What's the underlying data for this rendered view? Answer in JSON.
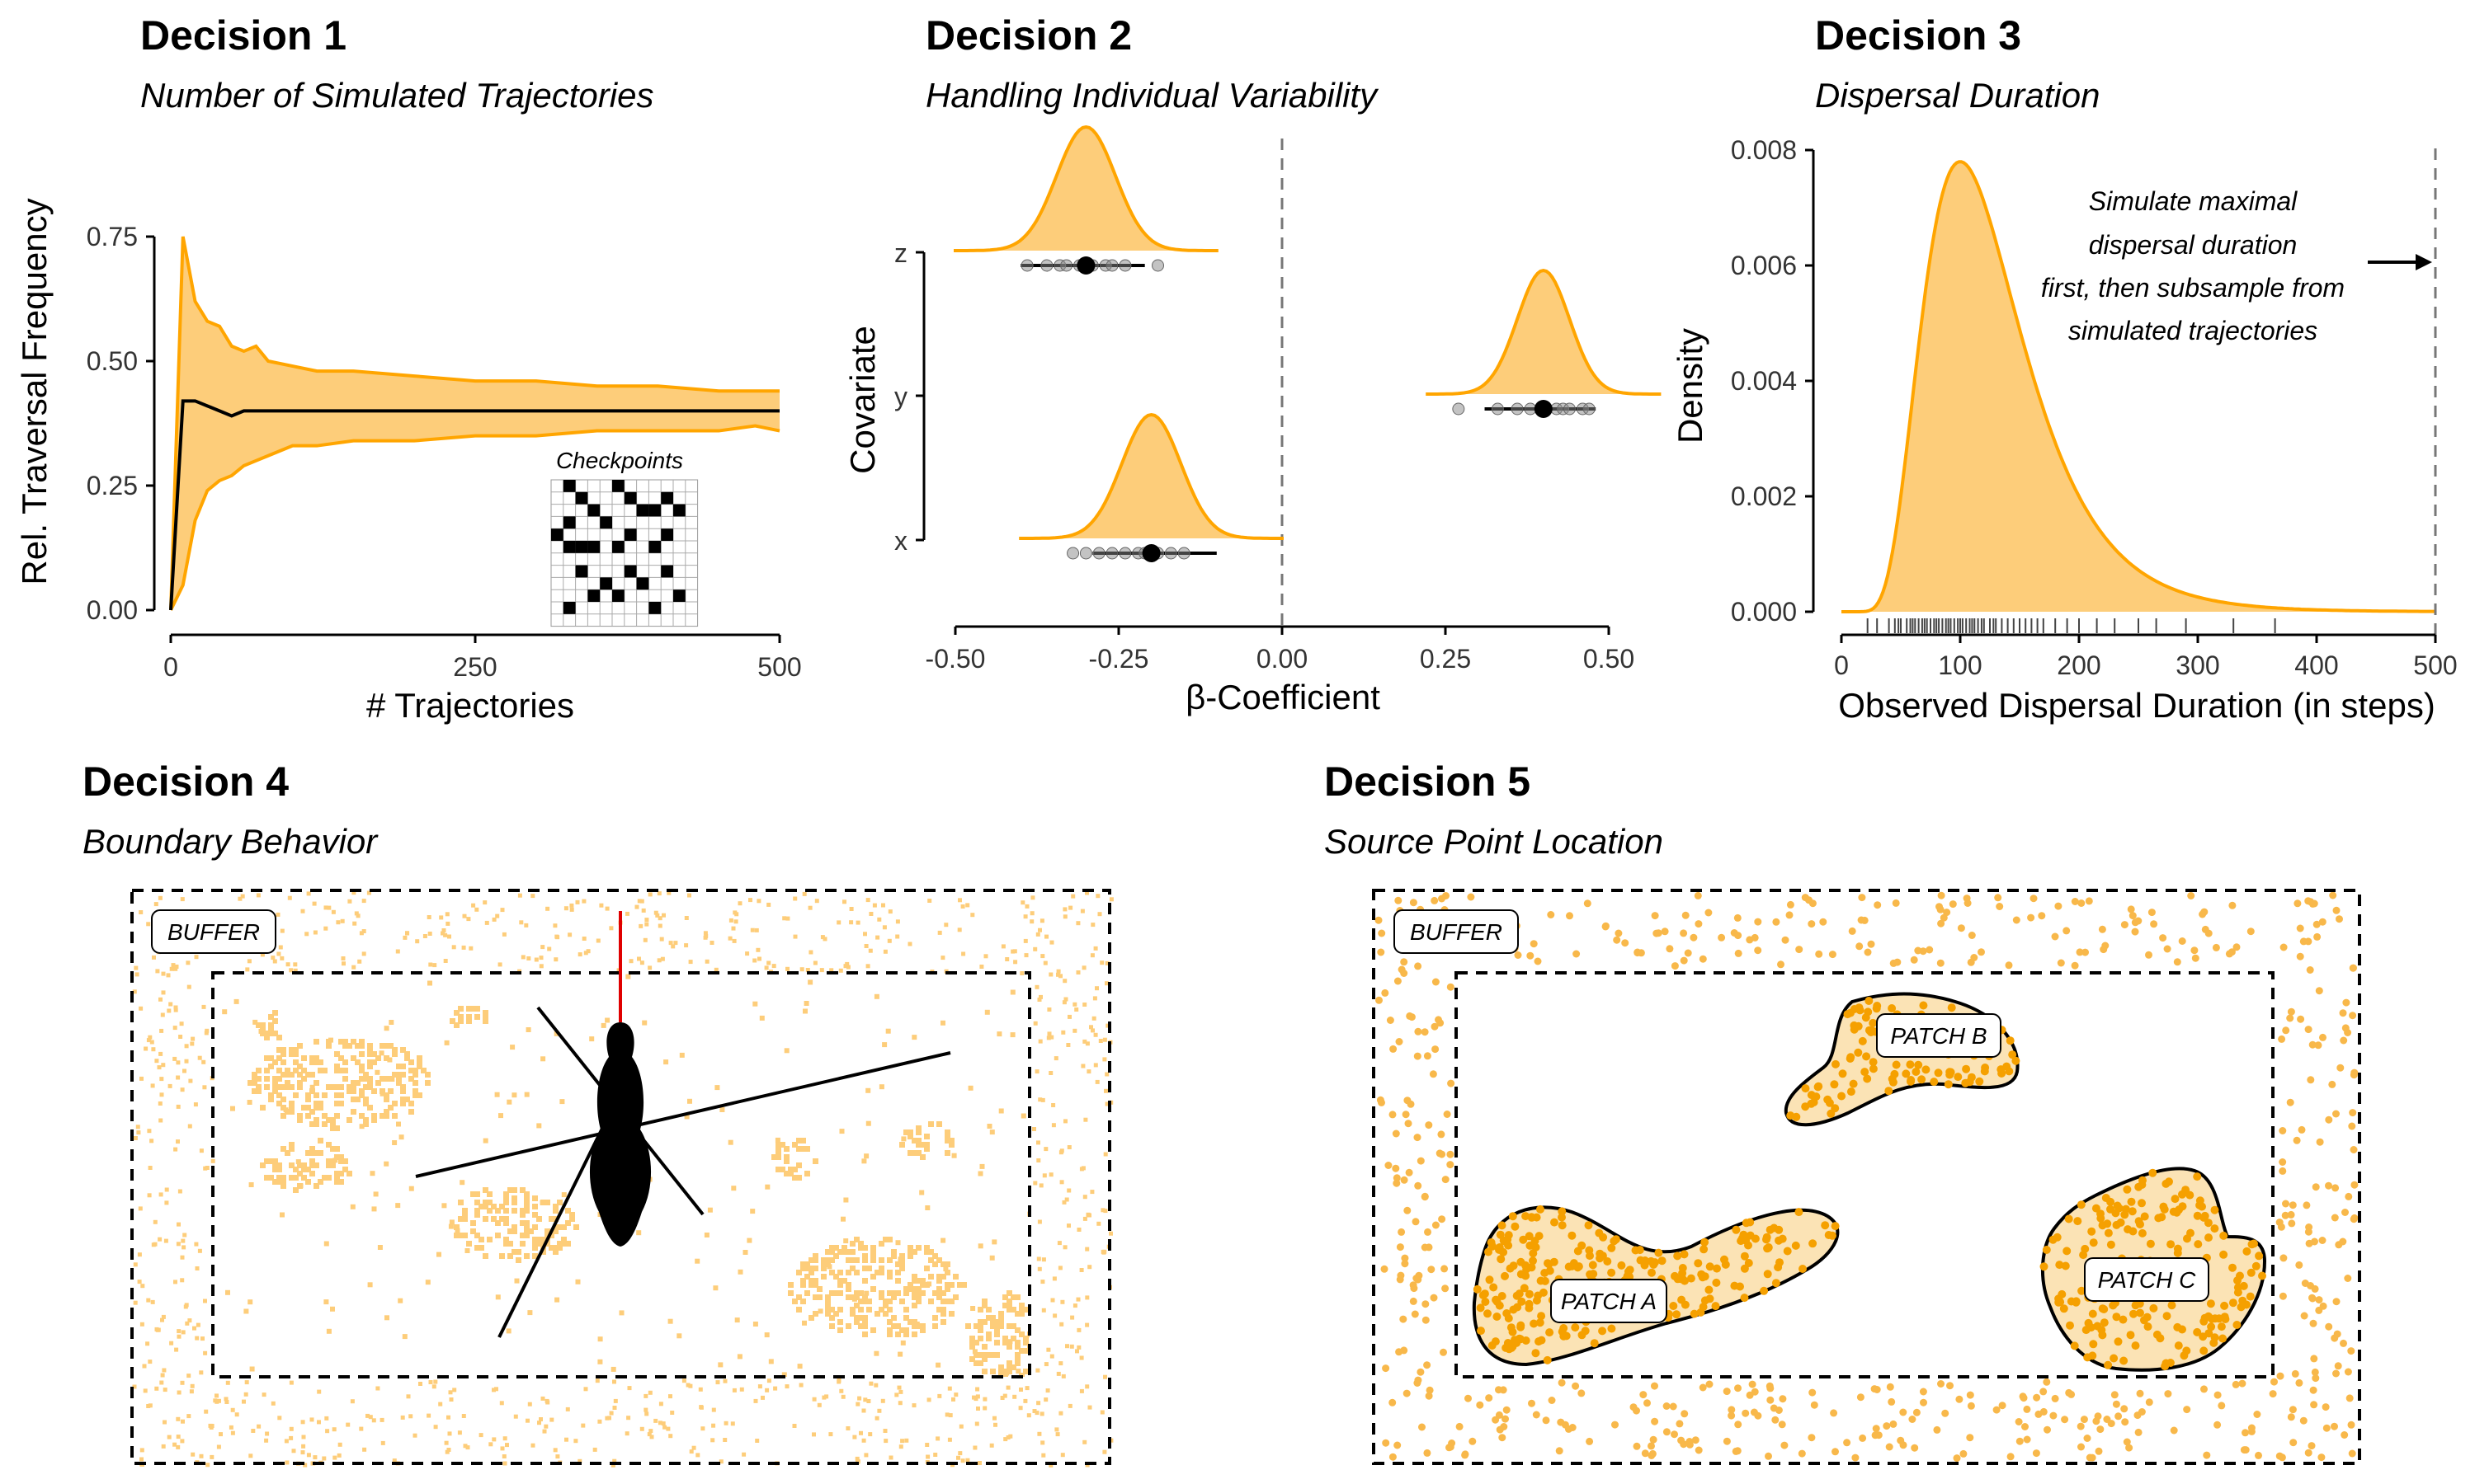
{
  "panels": [
    {
      "title": "Decision 1",
      "subtitle": "Number of Simulated Trajectories"
    },
    {
      "title": "Decision 2",
      "subtitle": "Handling Individual Variability"
    },
    {
      "title": "Decision 3",
      "subtitle": "Dispersal Duration"
    },
    {
      "title": "Decision 4",
      "subtitle": "Boundary Behavior"
    },
    {
      "title": "Decision 5",
      "subtitle": "Source Point Location"
    }
  ],
  "colors": {
    "fill": "#FDCD7A",
    "line": "#FFA500",
    "black": "#000000",
    "grey": "#888888"
  },
  "chart_data": [
    {
      "type": "area",
      "title": "Decision 1",
      "subtitle": "Number of Simulated Trajectories",
      "xlabel": "# Trajectories",
      "ylabel": "Rel. Traversal Frequency",
      "xlim": [
        0,
        500
      ],
      "ylim": [
        0,
        0.75
      ],
      "x_ticks": [
        "0",
        "250",
        "500"
      ],
      "y_ticks": [
        "0.00",
        "0.25",
        "0.50",
        "0.75"
      ],
      "series": [
        {
          "role": "mean",
          "x": [
            0,
            10,
            20,
            30,
            40,
            50,
            60,
            70,
            80,
            100,
            120,
            150,
            200,
            250,
            300,
            350,
            400,
            450,
            480,
            500
          ],
          "values": [
            0.0,
            0.42,
            0.42,
            0.41,
            0.4,
            0.39,
            0.4,
            0.4,
            0.4,
            0.4,
            0.4,
            0.4,
            0.4,
            0.4,
            0.4,
            0.4,
            0.4,
            0.4,
            0.4,
            0.4
          ]
        },
        {
          "role": "upper",
          "x": [
            0,
            10,
            20,
            30,
            40,
            50,
            60,
            70,
            80,
            100,
            120,
            150,
            200,
            250,
            300,
            350,
            400,
            450,
            480,
            500
          ],
          "values": [
            0.0,
            0.75,
            0.62,
            0.58,
            0.57,
            0.53,
            0.52,
            0.53,
            0.5,
            0.49,
            0.48,
            0.48,
            0.47,
            0.46,
            0.46,
            0.45,
            0.45,
            0.44,
            0.44,
            0.44
          ]
        },
        {
          "role": "lower",
          "x": [
            0,
            10,
            20,
            30,
            40,
            50,
            60,
            70,
            80,
            100,
            120,
            150,
            200,
            250,
            300,
            350,
            400,
            450,
            480,
            500
          ],
          "values": [
            0.0,
            0.05,
            0.18,
            0.24,
            0.26,
            0.27,
            0.29,
            0.3,
            0.31,
            0.33,
            0.33,
            0.34,
            0.34,
            0.35,
            0.35,
            0.36,
            0.36,
            0.36,
            0.37,
            0.36
          ]
        }
      ],
      "inset_label": "Checkpoints"
    },
    {
      "type": "scatter",
      "title": "Decision 2",
      "subtitle": "Handling Individual Variability",
      "xlabel": "β-Coefficient",
      "ylabel": "Covariate",
      "xlim": [
        -0.5,
        0.5
      ],
      "x_ticks": [
        "-0.50",
        "-0.25",
        "0.00",
        "0.25",
        "0.50"
      ],
      "categories": [
        "z",
        "y",
        "x"
      ],
      "estimates": [
        {
          "covariate": "z",
          "mean": -0.3,
          "lo": -0.4,
          "hi": -0.21,
          "sd": 0.045,
          "points": [
            -0.39,
            -0.36,
            -0.34,
            -0.33,
            -0.31,
            -0.29,
            -0.27,
            -0.26,
            -0.24,
            -0.19
          ]
        },
        {
          "covariate": "y",
          "mean": 0.4,
          "lo": 0.31,
          "hi": 0.48,
          "sd": 0.04,
          "points": [
            0.27,
            0.33,
            0.36,
            0.38,
            0.4,
            0.42,
            0.43,
            0.44,
            0.46,
            0.47
          ]
        },
        {
          "covariate": "x",
          "mean": -0.2,
          "lo": -0.29,
          "hi": -0.1,
          "sd": 0.045,
          "points": [
            -0.32,
            -0.3,
            -0.28,
            -0.26,
            -0.24,
            -0.22,
            -0.21,
            -0.19,
            -0.17,
            -0.15
          ]
        }
      ],
      "reference_line": 0
    },
    {
      "type": "area",
      "title": "Decision 3",
      "subtitle": "Dispersal Duration",
      "xlabel": "Observed Dispersal Duration (in steps)",
      "ylabel": "Density",
      "xlim": [
        0,
        500
      ],
      "ylim": [
        0,
        0.008
      ],
      "x_ticks": [
        "0",
        "100",
        "200",
        "300",
        "400",
        "500"
      ],
      "y_ticks": [
        "0.000",
        "0.002",
        "0.004",
        "0.006",
        "0.008"
      ],
      "density_model": {
        "family": "lognormal",
        "mode": 100,
        "peak": 0.0078
      },
      "rug": [
        22,
        30,
        40,
        45,
        48,
        50,
        55,
        58,
        60,
        62,
        65,
        68,
        70,
        72,
        75,
        78,
        80,
        82,
        85,
        88,
        90,
        92,
        95,
        98,
        100,
        102,
        105,
        108,
        110,
        112,
        115,
        118,
        120,
        125,
        128,
        130,
        135,
        140,
        145,
        150,
        155,
        160,
        165,
        170,
        180,
        190,
        200,
        215,
        230,
        250,
        265,
        290,
        330,
        365
      ],
      "reference_line": 500,
      "annotation": [
        "Simulate maximal",
        "dispersal duration",
        "first, then subsample from",
        "simulated trajectories"
      ]
    }
  ],
  "decision4": {
    "buffer_label": "BUFFER"
  },
  "decision5": {
    "buffer_label": "BUFFER",
    "patches": [
      "PATCH A",
      "PATCH B",
      "PATCH C"
    ]
  }
}
